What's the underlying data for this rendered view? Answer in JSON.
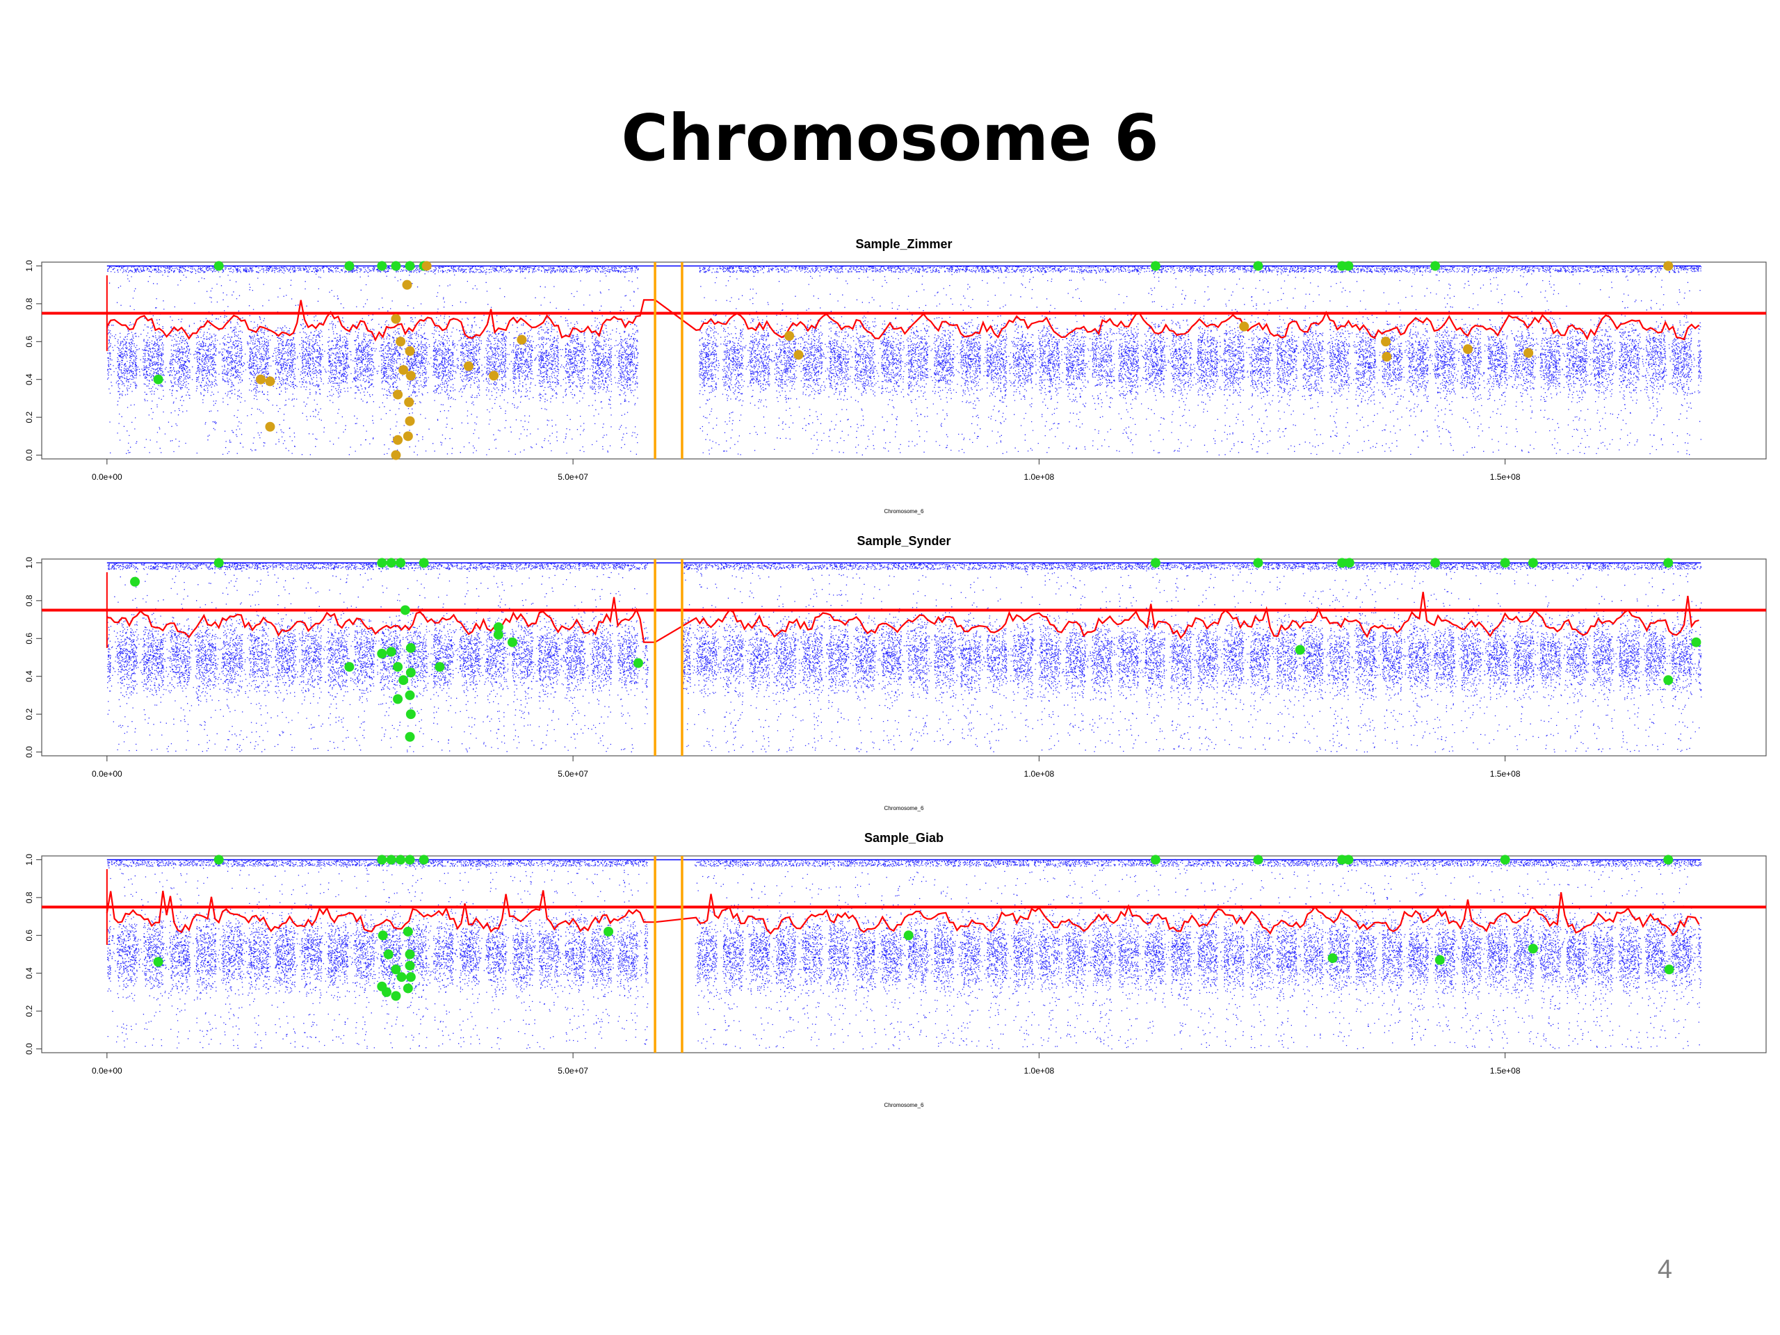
{
  "slide": {
    "title": "Chromosome 6",
    "page_number": "4"
  },
  "colors": {
    "points": "#0000ff",
    "trend": "#ff0000",
    "threshold": "#ff0000",
    "centromere": "#ffa500",
    "marker_green": "#22dd22",
    "marker_orange": "#d4a017"
  },
  "chart_data": [
    {
      "type": "scatter",
      "title": "Sample_Zimmer",
      "xlabel": "Chromosome_6",
      "ylabel": "",
      "xlim": [
        -7000000,
        178000000
      ],
      "ylim": [
        -0.02,
        1.02
      ],
      "x_ticks": [
        "0.0e+00",
        "5.0e+07",
        "1.0e+08",
        "1.5e+08"
      ],
      "y_ticks": [
        "0.0",
        "0.2",
        "0.4",
        "0.6",
        "0.8",
        "1.0"
      ],
      "grid": false,
      "threshold_y": 0.75,
      "centromere": [
        58800000,
        61700000
      ],
      "centromere_fill_y": 0.82,
      "gaps": [
        [
          57000000,
          63500000
        ]
      ],
      "green_markers": [
        {
          "x": 12000000,
          "y": 1.0
        },
        {
          "x": 26000000,
          "y": 1.0
        },
        {
          "x": 29500000,
          "y": 1.0
        },
        {
          "x": 31000000,
          "y": 1.0
        },
        {
          "x": 32500000,
          "y": 1.0
        },
        {
          "x": 34000000,
          "y": 1.0
        },
        {
          "x": 5500000,
          "y": 0.4
        },
        {
          "x": 112500000,
          "y": 1.0
        },
        {
          "x": 123500000,
          "y": 1.0
        },
        {
          "x": 132500000,
          "y": 1.0
        },
        {
          "x": 133200000,
          "y": 1.0
        },
        {
          "x": 142500000,
          "y": 1.0
        },
        {
          "x": 167500000,
          "y": 1.0
        }
      ],
      "orange_markers": [
        {
          "x": 34300000,
          "y": 1.0
        },
        {
          "x": 32200000,
          "y": 0.9
        },
        {
          "x": 31000000,
          "y": 0.72
        },
        {
          "x": 31500000,
          "y": 0.6
        },
        {
          "x": 32500000,
          "y": 0.55
        },
        {
          "x": 31800000,
          "y": 0.45
        },
        {
          "x": 32600000,
          "y": 0.42
        },
        {
          "x": 31200000,
          "y": 0.32
        },
        {
          "x": 32400000,
          "y": 0.28
        },
        {
          "x": 32500000,
          "y": 0.18
        },
        {
          "x": 32300000,
          "y": 0.1
        },
        {
          "x": 31200000,
          "y": 0.08
        },
        {
          "x": 31000000,
          "y": 0.0
        },
        {
          "x": 16500000,
          "y": 0.4
        },
        {
          "x": 17500000,
          "y": 0.39
        },
        {
          "x": 17500000,
          "y": 0.15
        },
        {
          "x": 38800000,
          "y": 0.47
        },
        {
          "x": 41500000,
          "y": 0.42
        },
        {
          "x": 44500000,
          "y": 0.61
        },
        {
          "x": 73200000,
          "y": 0.63
        },
        {
          "x": 74200000,
          "y": 0.53
        },
        {
          "x": 122000000,
          "y": 0.68
        },
        {
          "x": 137200000,
          "y": 0.6
        },
        {
          "x": 137300000,
          "y": 0.52
        },
        {
          "x": 146000000,
          "y": 0.56
        },
        {
          "x": 152500000,
          "y": 0.54
        },
        {
          "x": 167500000,
          "y": 1.0
        }
      ]
    },
    {
      "type": "scatter",
      "title": "Sample_Synder",
      "xlabel": "Chromosome_6",
      "ylabel": "",
      "xlim": [
        -7000000,
        178000000
      ],
      "ylim": [
        -0.02,
        1.02
      ],
      "x_ticks": [
        "0.0e+00",
        "5.0e+07",
        "1.0e+08",
        "1.5e+08"
      ],
      "y_ticks": [
        "0.0",
        "0.2",
        "0.4",
        "0.6",
        "0.8",
        "1.0"
      ],
      "grid": false,
      "threshold_y": 0.75,
      "centromere": [
        58800000,
        61700000
      ],
      "centromere_fill_y": 0.58,
      "gaps": [
        [
          58000000,
          61700000
        ]
      ],
      "green_markers": [
        {
          "x": 12000000,
          "y": 1.0
        },
        {
          "x": 29500000,
          "y": 1.0
        },
        {
          "x": 30500000,
          "y": 1.0
        },
        {
          "x": 31500000,
          "y": 1.0
        },
        {
          "x": 34000000,
          "y": 1.0
        },
        {
          "x": 3000000,
          "y": 0.9
        },
        {
          "x": 26000000,
          "y": 0.45
        },
        {
          "x": 29500000,
          "y": 0.52
        },
        {
          "x": 30500000,
          "y": 0.53
        },
        {
          "x": 31200000,
          "y": 0.45
        },
        {
          "x": 32000000,
          "y": 0.75
        },
        {
          "x": 32600000,
          "y": 0.55
        },
        {
          "x": 32600000,
          "y": 0.42
        },
        {
          "x": 31800000,
          "y": 0.38
        },
        {
          "x": 32500000,
          "y": 0.3
        },
        {
          "x": 32600000,
          "y": 0.2
        },
        {
          "x": 32500000,
          "y": 0.08
        },
        {
          "x": 31200000,
          "y": 0.28
        },
        {
          "x": 35700000,
          "y": 0.45
        },
        {
          "x": 42000000,
          "y": 0.66
        },
        {
          "x": 42000000,
          "y": 0.62
        },
        {
          "x": 43500000,
          "y": 0.58
        },
        {
          "x": 57000000,
          "y": 0.47
        },
        {
          "x": 112500000,
          "y": 1.0
        },
        {
          "x": 123500000,
          "y": 1.0
        },
        {
          "x": 132500000,
          "y": 1.0
        },
        {
          "x": 133300000,
          "y": 1.0
        },
        {
          "x": 142500000,
          "y": 1.0
        },
        {
          "x": 150000000,
          "y": 1.0
        },
        {
          "x": 153000000,
          "y": 1.0
        },
        {
          "x": 167500000,
          "y": 1.0
        },
        {
          "x": 128000000,
          "y": 0.54
        },
        {
          "x": 167500000,
          "y": 0.38
        },
        {
          "x": 170500000,
          "y": 0.58
        }
      ],
      "orange_markers": []
    },
    {
      "type": "scatter",
      "title": "Sample_Giab",
      "xlabel": "Chromosome_6",
      "ylabel": "",
      "xlim": [
        -7000000,
        178000000
      ],
      "ylim": [
        -0.02,
        1.02
      ],
      "x_ticks": [
        "0.0e+00",
        "5.0e+07",
        "1.0e+08",
        "1.5e+08"
      ],
      "y_ticks": [
        "0.0",
        "0.2",
        "0.4",
        "0.6",
        "0.8",
        "1.0"
      ],
      "grid": false,
      "threshold_y": 0.75,
      "centromere": [
        58800000,
        61700000
      ],
      "centromere_fill_y": 0.67,
      "gaps": [
        [
          58000000,
          63000000
        ]
      ],
      "green_markers": [
        {
          "x": 12000000,
          "y": 1.0
        },
        {
          "x": 29500000,
          "y": 1.0
        },
        {
          "x": 30500000,
          "y": 1.0
        },
        {
          "x": 31500000,
          "y": 1.0
        },
        {
          "x": 32500000,
          "y": 1.0
        },
        {
          "x": 34000000,
          "y": 1.0
        },
        {
          "x": 5500000,
          "y": 0.46
        },
        {
          "x": 29600000,
          "y": 0.6
        },
        {
          "x": 30200000,
          "y": 0.5
        },
        {
          "x": 31000000,
          "y": 0.42
        },
        {
          "x": 31600000,
          "y": 0.38
        },
        {
          "x": 32300000,
          "y": 0.62
        },
        {
          "x": 32500000,
          "y": 0.5
        },
        {
          "x": 32500000,
          "y": 0.44
        },
        {
          "x": 32600000,
          "y": 0.38
        },
        {
          "x": 32300000,
          "y": 0.32
        },
        {
          "x": 30000000,
          "y": 0.3
        },
        {
          "x": 31000000,
          "y": 0.28
        },
        {
          "x": 29500000,
          "y": 0.33
        },
        {
          "x": 53800000,
          "y": 0.62
        },
        {
          "x": 86000000,
          "y": 0.6
        },
        {
          "x": 112500000,
          "y": 1.0
        },
        {
          "x": 123500000,
          "y": 1.0
        },
        {
          "x": 132500000,
          "y": 1.0
        },
        {
          "x": 133200000,
          "y": 1.0
        },
        {
          "x": 150000000,
          "y": 1.0
        },
        {
          "x": 167500000,
          "y": 1.0
        },
        {
          "x": 131500000,
          "y": 0.48
        },
        {
          "x": 143000000,
          "y": 0.47
        },
        {
          "x": 153000000,
          "y": 0.53
        },
        {
          "x": 167600000,
          "y": 0.42
        }
      ],
      "orange_markers": []
    }
  ]
}
